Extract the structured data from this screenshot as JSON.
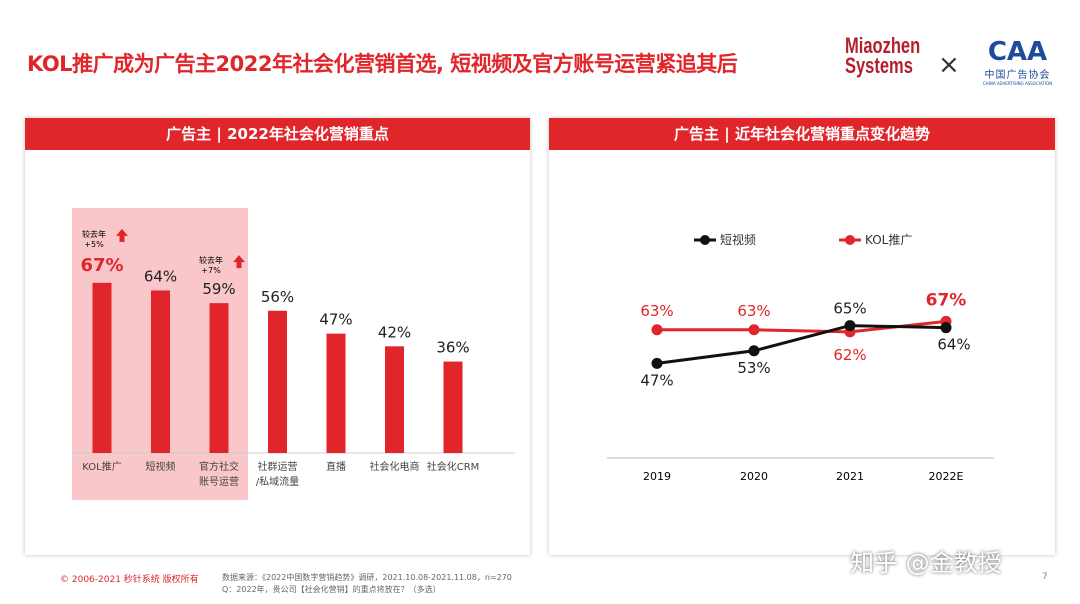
{
  "title": "KOL推广成为广告主2022年社会化营销首选, 短视频及官方账号运营紧追其后",
  "logos": {
    "miaozhen": "Miaozhen Systems",
    "separator": "×",
    "caa": "CAA",
    "caa_cn": "中国广告协会",
    "caa_en": "CHINA ADVERTISING ASSOCIATION"
  },
  "colors": {
    "accent": "#e0262b",
    "highlight": "#f9c6c9",
    "black_series": "#111111"
  },
  "chart_data": [
    {
      "type": "bar",
      "title": "广告主 | 2022年社会化营销重点",
      "categories": [
        "KOL推广",
        "短视频",
        "官方社交账号运营",
        "社群运营/私域流量",
        "直播",
        "社会化电商",
        "社会化CRM"
      ],
      "category_lines": [
        [
          "KOL推广"
        ],
        [
          "短视频"
        ],
        [
          "官方社交",
          "账号运营"
        ],
        [
          "社群运营",
          "/私域流量"
        ],
        [
          "直播"
        ],
        [
          "社会化电商"
        ],
        [
          "社会化CRM"
        ]
      ],
      "values": [
        67,
        64,
        59,
        56,
        47,
        42,
        36
      ],
      "labels": [
        "67%",
        "64%",
        "59%",
        "56%",
        "47%",
        "42%",
        "36%"
      ],
      "ylim": [
        0,
        100
      ],
      "highlighted": [
        "KOL推广",
        "短视频",
        "官方社交账号运营"
      ],
      "annotations": [
        {
          "category": "KOL推广",
          "text1": "较去年",
          "text2": "+5%",
          "icon": "arrow-up-icon"
        },
        {
          "category": "官方社交账号运营",
          "text1": "较去年",
          "text2": "+7%",
          "icon": "arrow-up-icon"
        }
      ]
    },
    {
      "type": "line",
      "title": "广告主 | 近年社会化营销重点变化趋势",
      "x": [
        "2019",
        "2020",
        "2021",
        "2022E"
      ],
      "ylim": [
        2,
        100
      ],
      "legend": "top",
      "series": [
        {
          "name": "短视频",
          "color": "#111111",
          "values": [
            47,
            53,
            65,
            64
          ],
          "labels": [
            "47%",
            "53%",
            "65%",
            "64%"
          ]
        },
        {
          "name": "KOL推广",
          "color": "#e0262b",
          "values": [
            63,
            63,
            62,
            67
          ],
          "labels": [
            "63%",
            "63%",
            "62%",
            "67%"
          ]
        }
      ]
    }
  ],
  "footer": {
    "copyright": "© 2006-2021 秒针系统 版权所有",
    "source": "数据来源：《2022中国数字营销趋势》调研，2021.10.08-2021.11.08，n=270",
    "question": "Q：2022年，贵公司【社会化营销】的重点将放在？（多选）",
    "page": "7",
    "watermark": "知乎 @金教授"
  }
}
